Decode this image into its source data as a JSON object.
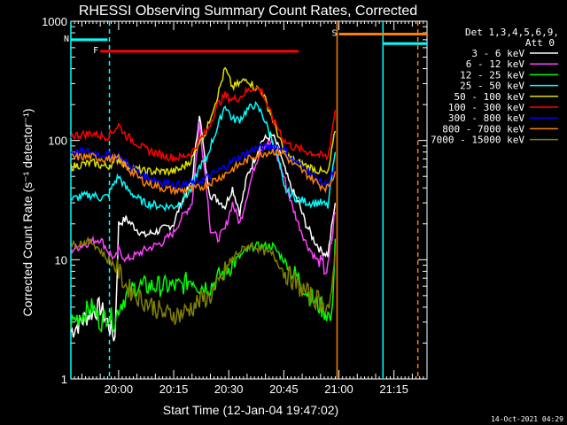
{
  "chart_data": {
    "type": "line",
    "title": "RHESSI Observing Summary Count Rates, Corrected",
    "xlabel": "Start Time (12-Jan-04 19:47:02)",
    "ylabel": "Corrected Count Rate (s⁻¹ detector⁻¹)",
    "x_unit": "minutes since 19:47:02",
    "xlim": [
      0,
      97
    ],
    "ylim": [
      1,
      1000
    ],
    "y_scale": "log",
    "x_ticks": [
      {
        "label": "20:00",
        "x": 13
      },
      {
        "label": "20:15",
        "x": 28
      },
      {
        "label": "20:30",
        "x": 43
      },
      {
        "label": "20:45",
        "x": 58
      },
      {
        "label": "21:00",
        "x": 73
      },
      {
        "label": "21:15",
        "x": 88
      }
    ],
    "y_ticks": [
      {
        "label": "1",
        "y": 1
      },
      {
        "label": "10",
        "y": 10
      },
      {
        "label": "100",
        "y": 100
      },
      {
        "label": "1000",
        "y": 1000
      }
    ],
    "legend": {
      "header1": "Det 1,3,4,5,6,9,",
      "header2": "Att 0",
      "placement": "right"
    },
    "series": [
      {
        "name": "3 - 6 keV",
        "color": "#ffffff",
        "x": [
          0,
          5,
          8,
          10,
          12,
          13,
          15,
          18,
          20,
          25,
          28,
          30,
          33,
          35,
          37,
          38,
          40,
          42,
          44,
          46,
          48,
          50,
          52,
          55,
          57,
          58,
          60,
          62,
          64,
          66,
          68,
          70,
          72
        ],
        "y": [
          2.5,
          3.5,
          4,
          3,
          2.2,
          20,
          22,
          18,
          16,
          18,
          20,
          30,
          45,
          170,
          50,
          35,
          32,
          28,
          40,
          25,
          50,
          70,
          100,
          110,
          80,
          60,
          40,
          30,
          20,
          15,
          12,
          11,
          30
        ]
      },
      {
        "name": "6 - 12 keV",
        "color": "#ff40ff",
        "x": [
          0,
          5,
          8,
          10,
          12,
          13,
          15,
          18,
          20,
          25,
          28,
          30,
          33,
          35,
          37,
          38,
          40,
          42,
          44,
          46,
          48,
          50,
          52,
          55,
          57,
          58,
          60,
          62,
          64,
          66,
          68,
          70,
          72
        ],
        "y": [
          12,
          14,
          15,
          12,
          10,
          12,
          10,
          11,
          12,
          14,
          17,
          22,
          30,
          140,
          40,
          18,
          15,
          18,
          30,
          20,
          35,
          60,
          90,
          95,
          60,
          50,
          30,
          20,
          14,
          11,
          9,
          8,
          25
        ]
      },
      {
        "name": "12 - 25 keV",
        "color": "#00ff00",
        "x": [
          0,
          3,
          6,
          8,
          10,
          12,
          13,
          15,
          18,
          20,
          25,
          28,
          30,
          33,
          35,
          38,
          40,
          42,
          45,
          48,
          50,
          52,
          55,
          58,
          60,
          62,
          65,
          68,
          70,
          71,
          72
        ],
        "y": [
          3,
          3.5,
          4,
          3,
          3.5,
          3,
          4,
          5,
          6,
          6,
          6,
          6,
          6,
          7,
          6,
          6,
          7,
          8,
          10,
          12,
          13,
          13,
          13,
          10,
          8,
          7,
          5,
          4,
          3.5,
          3,
          15
        ]
      },
      {
        "name": "25 - 50 keV",
        "color": "#00ffff",
        "x": [
          0,
          3,
          6,
          8,
          10,
          12,
          13,
          15,
          18,
          20,
          25,
          28,
          30,
          33,
          35,
          37,
          38,
          40,
          42,
          44,
          46,
          48,
          50,
          52,
          55,
          57,
          58,
          60,
          62,
          65,
          68,
          70,
          72
        ],
        "y": [
          32,
          34,
          35,
          33,
          34,
          45,
          50,
          40,
          33,
          30,
          28,
          28,
          30,
          40,
          60,
          70,
          90,
          130,
          200,
          150,
          150,
          180,
          200,
          170,
          100,
          60,
          40,
          35,
          32,
          30,
          30,
          28,
          80
        ]
      },
      {
        "name": "50 - 100 keV",
        "color": "#e0e000",
        "x": [
          0,
          3,
          6,
          8,
          10,
          12,
          13,
          15,
          18,
          20,
          25,
          28,
          30,
          33,
          35,
          37,
          38,
          40,
          42,
          44,
          46,
          48,
          50,
          52,
          55,
          57,
          58,
          60,
          62,
          65,
          68,
          70,
          72
        ],
        "y": [
          60,
          63,
          65,
          62,
          60,
          68,
          70,
          62,
          57,
          55,
          55,
          55,
          58,
          70,
          100,
          120,
          160,
          240,
          400,
          280,
          300,
          330,
          280,
          260,
          150,
          100,
          80,
          70,
          65,
          60,
          55,
          52,
          120
        ]
      },
      {
        "name": "100 - 300 keV",
        "color": "#ff0000",
        "x": [
          0,
          3,
          6,
          8,
          10,
          12,
          13,
          15,
          18,
          20,
          25,
          28,
          30,
          33,
          35,
          37,
          38,
          40,
          42,
          44,
          46,
          48,
          50,
          52,
          55,
          57,
          58,
          60,
          62,
          65,
          68,
          70,
          72
        ],
        "y": [
          110,
          112,
          115,
          110,
          108,
          125,
          135,
          110,
          95,
          85,
          75,
          72,
          72,
          80,
          100,
          120,
          140,
          200,
          240,
          220,
          230,
          260,
          280,
          260,
          150,
          120,
          100,
          90,
          85,
          80,
          75,
          72,
          180
        ]
      },
      {
        "name": "300 - 800 keV",
        "color": "#0000ff",
        "x": [
          0,
          5,
          10,
          13,
          15,
          18,
          20,
          25,
          28,
          30,
          35,
          40,
          45,
          50,
          55,
          58,
          60,
          65,
          68,
          70,
          72
        ],
        "y": [
          80,
          80,
          75,
          75,
          65,
          55,
          50,
          45,
          43,
          42,
          45,
          55,
          70,
          85,
          90,
          85,
          70,
          55,
          45,
          42,
          60
        ]
      },
      {
        "name": "800 - 7000 keV",
        "color": "#ff8000",
        "x": [
          0,
          5,
          10,
          13,
          15,
          18,
          20,
          25,
          28,
          30,
          35,
          40,
          45,
          50,
          55,
          58,
          60,
          65,
          68,
          70,
          72
        ],
        "y": [
          72,
          73,
          70,
          70,
          60,
          50,
          45,
          40,
          38,
          38,
          40,
          48,
          60,
          75,
          82,
          78,
          65,
          50,
          42,
          40,
          55
        ]
      },
      {
        "name": "7000 - 15000 keV",
        "color": "#808000",
        "x": [
          0,
          3,
          6,
          8,
          10,
          12,
          13,
          15,
          18,
          20,
          23,
          25,
          28,
          30,
          33,
          35,
          38,
          40,
          42,
          45,
          48,
          50,
          52,
          55,
          58,
          60,
          62,
          65,
          68,
          70,
          71,
          72
        ],
        "y": [
          13,
          14,
          14,
          12,
          10,
          9,
          8,
          6,
          5,
          4.5,
          4,
          3.5,
          3.5,
          3.5,
          4,
          4.5,
          5,
          6,
          8,
          11,
          13,
          13,
          12,
          11,
          8,
          7,
          6,
          5,
          4.5,
          4,
          4.5,
          12
        ]
      }
    ],
    "flags": [
      {
        "label": "F",
        "color": "#ff0000",
        "x_start": 8,
        "x_end": 62,
        "y": 560
      },
      {
        "label": "S",
        "color": "#ff8000",
        "x_start": 73,
        "x_end": 97,
        "y": 780
      },
      {
        "label": "N",
        "color": "#00ffff",
        "x_start": 0,
        "x_end": 10,
        "y": 700
      }
    ],
    "vlines": [
      {
        "x": 0,
        "color": "#00ffff",
        "style": "solid"
      },
      {
        "x": 10.5,
        "color": "#00ffff",
        "style": "dashed"
      },
      {
        "x": 72.5,
        "color": "#ff8000",
        "style": "solid"
      },
      {
        "x": 85,
        "color": "#00ffff",
        "style": "solid"
      },
      {
        "x": 94.5,
        "color": "#ff8000",
        "style": "dashed"
      }
    ],
    "extra_segment": {
      "color": "#00ffff",
      "x_start": 85,
      "x_end": 97,
      "y": 650
    }
  },
  "footer": {
    "timestamp": "14-Oct-2021 04:29"
  }
}
